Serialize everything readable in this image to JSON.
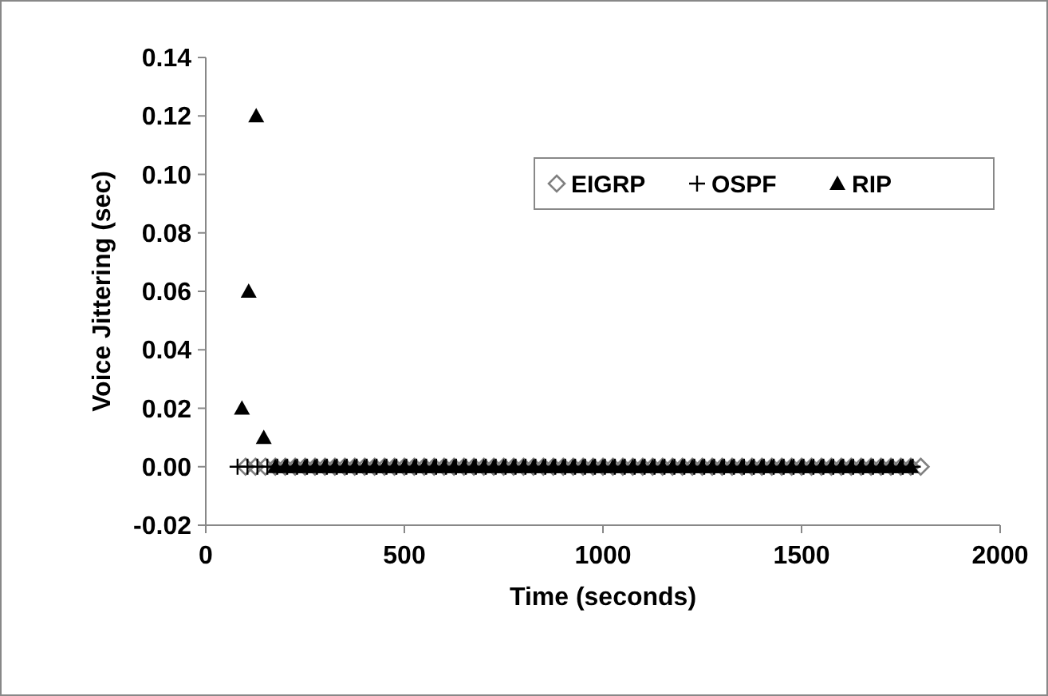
{
  "chart_data": {
    "type": "scatter",
    "xlabel": "Time (seconds)",
    "ylabel": "Voice Jittering  (sec)",
    "xlim": [
      0,
      2000
    ],
    "xticks": [
      0,
      500,
      1000,
      1500,
      2000
    ],
    "ylim": [
      -0.02,
      0.14
    ],
    "yticks": [
      {
        "value": -0.02,
        "label": "-0.02"
      },
      {
        "value": 0,
        "label": "0.00"
      },
      {
        "value": 0.02,
        "label": "0.02"
      },
      {
        "value": 0.04,
        "label": "0.04"
      },
      {
        "value": 0.06,
        "label": "0.06"
      },
      {
        "value": 0.08,
        "label": "0.08"
      },
      {
        "value": 0.1,
        "label": "0.10"
      },
      {
        "value": 0.12,
        "label": "0.12"
      },
      {
        "value": 0.14,
        "label": "0.14"
      }
    ],
    "grid": false,
    "legend": "top right",
    "series": [
      {
        "name": "EIGRP",
        "color": "#808080",
        "marker": "diamond",
        "x": [
          100,
          125,
          150,
          175,
          200,
          225,
          250,
          275,
          300,
          325,
          350,
          375,
          400,
          425,
          450,
          475,
          500,
          525,
          550,
          575,
          600,
          625,
          650,
          675,
          700,
          725,
          750,
          775,
          800,
          825,
          850,
          875,
          900,
          925,
          950,
          975,
          1000,
          1025,
          1050,
          1075,
          1100,
          1125,
          1150,
          1175,
          1200,
          1225,
          1250,
          1275,
          1300,
          1325,
          1350,
          1375,
          1400,
          1425,
          1450,
          1475,
          1500,
          1525,
          1550,
          1575,
          1600,
          1625,
          1650,
          1675,
          1700,
          1725,
          1750,
          1775,
          1800
        ],
        "values": [
          0,
          0,
          0,
          0,
          0,
          0,
          0,
          0,
          0,
          0,
          0,
          0,
          0,
          0,
          0,
          0,
          0,
          0,
          0,
          0,
          0,
          0,
          0,
          0,
          0,
          0,
          0,
          0,
          0,
          0,
          0,
          0,
          0,
          0,
          0,
          0,
          0,
          0,
          0,
          0,
          0,
          0,
          0,
          0,
          0,
          0,
          0,
          0,
          0,
          0,
          0,
          0,
          0,
          0,
          0,
          0,
          0,
          0,
          0,
          0,
          0,
          0,
          0,
          0,
          0,
          0,
          0,
          0,
          0
        ]
      },
      {
        "name": "OSPF",
        "color": "#000000",
        "marker": "cross",
        "x": [
          80,
          105,
          130,
          155,
          180,
          205,
          230,
          255,
          280,
          305,
          330,
          355,
          380,
          405,
          430,
          455,
          480,
          505,
          530,
          555,
          580,
          605,
          630,
          655,
          680,
          705,
          730,
          755,
          780,
          805,
          830,
          855,
          880,
          905,
          930,
          955,
          980,
          1005,
          1030,
          1055,
          1080,
          1105,
          1130,
          1155,
          1180,
          1205,
          1230,
          1255,
          1280,
          1305,
          1330,
          1355,
          1380,
          1405,
          1430,
          1455,
          1480,
          1505,
          1530,
          1555,
          1580,
          1605,
          1630,
          1655,
          1680,
          1705,
          1730,
          1755,
          1780
        ],
        "values": [
          0,
          0,
          0,
          0,
          0,
          0,
          0,
          0,
          0,
          0,
          0,
          0,
          0,
          0,
          0,
          0,
          0,
          0,
          0,
          0,
          0,
          0,
          0,
          0,
          0,
          0,
          0,
          0,
          0,
          0,
          0,
          0,
          0,
          0,
          0,
          0,
          0,
          0,
          0,
          0,
          0,
          0,
          0,
          0,
          0,
          0,
          0,
          0,
          0,
          0,
          0,
          0,
          0,
          0,
          0,
          0,
          0,
          0,
          0,
          0,
          0,
          0,
          0,
          0,
          0,
          0,
          0,
          0,
          0
        ]
      },
      {
        "name": "RIP",
        "color": "#000000",
        "marker": "triangle",
        "x": [
          91,
          108,
          127,
          146,
          175,
          200,
          225,
          250,
          275,
          300,
          325,
          350,
          375,
          400,
          425,
          450,
          475,
          500,
          525,
          550,
          575,
          600,
          625,
          650,
          675,
          700,
          725,
          750,
          775,
          800,
          825,
          850,
          875,
          900,
          925,
          950,
          975,
          1000,
          1025,
          1050,
          1075,
          1100,
          1125,
          1150,
          1175,
          1200,
          1225,
          1250,
          1275,
          1300,
          1325,
          1350,
          1375,
          1400,
          1425,
          1450,
          1475,
          1500,
          1525,
          1550,
          1575,
          1600,
          1625,
          1650,
          1675,
          1700,
          1725,
          1750,
          1775
        ],
        "values": [
          0.02,
          0.06,
          0.12,
          0.01,
          0,
          0,
          0,
          0,
          0,
          0,
          0,
          0,
          0,
          0,
          0,
          0,
          0,
          0,
          0,
          0,
          0,
          0,
          0,
          0,
          0,
          0,
          0,
          0,
          0,
          0,
          0,
          0,
          0,
          0,
          0,
          0,
          0,
          0,
          0,
          0,
          0,
          0,
          0,
          0,
          0,
          0,
          0,
          0,
          0,
          0,
          0,
          0,
          0,
          0,
          0,
          0,
          0,
          0,
          0,
          0,
          0,
          0,
          0,
          0,
          0,
          0,
          0,
          0,
          0
        ]
      }
    ]
  }
}
